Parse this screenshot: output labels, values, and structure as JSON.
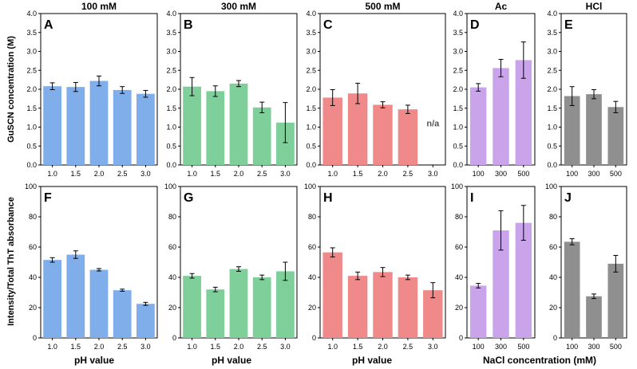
{
  "colors": {
    "blue": "#7faeea",
    "green": "#7fcf9b",
    "red": "#f08a8a",
    "purple": "#c9a4ea",
    "gray": "#8f8f8f"
  },
  "labels": {
    "row1_ylabel": "GuSCN concentration (M)",
    "row2_ylabel": "Intensity/Total ThT absorbance",
    "xlabel_ph_1": "pH value",
    "xlabel_ph_2": "pH value",
    "xlabel_ph_3": "pH value",
    "xlabel_nacl": "NaCl concentration (mM)"
  },
  "chart_data": [
    {
      "letter": "A",
      "type": "bar",
      "title": "100 mM",
      "color": "blue",
      "categories": [
        "1.0",
        "1.5",
        "2.0",
        "2.5",
        "3.0"
      ],
      "values": [
        2.08,
        2.06,
        2.22,
        1.98,
        1.88
      ],
      "errors": [
        0.09,
        0.12,
        0.13,
        0.09,
        0.09
      ],
      "ylim": [
        0,
        4.0
      ],
      "yticks": [
        "0.0",
        "0.5",
        "1.0",
        "1.5",
        "2.0",
        "2.5",
        "3.0",
        "3.5",
        "4.0"
      ]
    },
    {
      "letter": "B",
      "type": "bar",
      "title": "300 mM",
      "color": "green",
      "categories": [
        "1.0",
        "1.5",
        "2.0",
        "2.5",
        "3.0"
      ],
      "values": [
        2.07,
        1.95,
        2.15,
        1.52,
        1.12
      ],
      "errors": [
        0.24,
        0.14,
        0.08,
        0.14,
        0.53
      ],
      "ylim": [
        0,
        4.0
      ],
      "yticks": [
        "0.0",
        "0.5",
        "1.0",
        "1.5",
        "2.0",
        "2.5",
        "3.0",
        "3.5",
        "4.0"
      ]
    },
    {
      "letter": "C",
      "type": "bar",
      "title": "500 mM",
      "color": "red",
      "categories": [
        "1.0",
        "1.5",
        "2.0",
        "2.5",
        "3.0"
      ],
      "values": [
        1.78,
        1.89,
        1.59,
        1.47,
        null
      ],
      "errors": [
        0.21,
        0.27,
        0.08,
        0.11,
        null
      ],
      "annotation": "n/a",
      "ylim": [
        0,
        4.0
      ],
      "yticks": [
        "0.0",
        "0.5",
        "1.0",
        "1.5",
        "2.0",
        "2.5",
        "3.0",
        "3.5",
        "4.0"
      ]
    },
    {
      "letter": "D",
      "type": "bar",
      "title": "Ac",
      "color": "purple",
      "categories": [
        "100",
        "300",
        "500"
      ],
      "values": [
        2.05,
        2.56,
        2.77
      ],
      "errors": [
        0.1,
        0.23,
        0.48
      ],
      "ylim": [
        0,
        4.0
      ],
      "yticks": [
        "0.0",
        "0.5",
        "1.0",
        "1.5",
        "2.0",
        "2.5",
        "3.0",
        "3.5",
        "4.0"
      ]
    },
    {
      "letter": "E",
      "type": "bar",
      "title": "HCl",
      "color": "gray",
      "categories": [
        "100",
        "300",
        "500"
      ],
      "values": [
        1.82,
        1.87,
        1.53
      ],
      "errors": [
        0.25,
        0.12,
        0.15
      ],
      "ylim": [
        0,
        4.0
      ],
      "yticks": [
        "0.0",
        "0.5",
        "1.0",
        "1.5",
        "2.0",
        "2.5",
        "3.0",
        "3.5",
        "4.0"
      ]
    },
    {
      "letter": "F",
      "type": "bar",
      "title": "",
      "color": "blue",
      "categories": [
        "1.0",
        "1.5",
        "2.0",
        "2.5",
        "3.0"
      ],
      "values": [
        51.5,
        55.0,
        45.0,
        31.5,
        22.5
      ],
      "errors": [
        1.5,
        2.5,
        0.8,
        0.7,
        1.0
      ],
      "ylim": [
        0,
        100
      ],
      "yticks": [
        "0",
        "20",
        "40",
        "60",
        "80",
        "100"
      ]
    },
    {
      "letter": "G",
      "type": "bar",
      "title": "",
      "color": "green",
      "categories": [
        "1.0",
        "1.5",
        "2.0",
        "2.5",
        "3.0"
      ],
      "values": [
        41.0,
        32.0,
        45.5,
        40.0,
        44.0
      ],
      "errors": [
        1.5,
        1.5,
        1.5,
        1.5,
        6.0
      ],
      "ylim": [
        0,
        100
      ],
      "yticks": [
        "0",
        "20",
        "40",
        "60",
        "80",
        "100"
      ]
    },
    {
      "letter": "H",
      "type": "bar",
      "title": "",
      "color": "red",
      "categories": [
        "1.0",
        "1.5",
        "2.0",
        "2.5",
        "3.0"
      ],
      "values": [
        56.5,
        41.0,
        43.5,
        40.0,
        31.5
      ],
      "errors": [
        3.0,
        2.5,
        3.0,
        1.5,
        5.0
      ],
      "ylim": [
        0,
        100
      ],
      "yticks": [
        "0",
        "20",
        "40",
        "60",
        "80",
        "100"
      ]
    },
    {
      "letter": "I",
      "type": "bar",
      "title": "",
      "color": "purple",
      "categories": [
        "100",
        "300",
        "500"
      ],
      "values": [
        34.5,
        71.0,
        76.0
      ],
      "errors": [
        1.5,
        13.0,
        11.5
      ],
      "ylim": [
        0,
        100
      ],
      "yticks": [
        "0",
        "20",
        "40",
        "60",
        "80",
        "100"
      ]
    },
    {
      "letter": "J",
      "type": "bar",
      "title": "",
      "color": "gray",
      "categories": [
        "100",
        "300",
        "500"
      ],
      "values": [
        63.5,
        27.5,
        49.0
      ],
      "errors": [
        2.0,
        1.5,
        5.5
      ],
      "ylim": [
        0,
        100
      ],
      "yticks": [
        "0",
        "20",
        "40",
        "60",
        "80",
        "100"
      ]
    }
  ]
}
